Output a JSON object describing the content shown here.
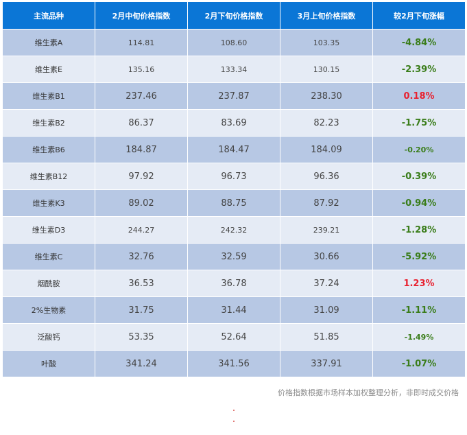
{
  "table": {
    "headers": [
      "主流品种",
      "2月中旬价格指数",
      "2月下旬价格指数",
      "3月上旬价格指数",
      "较2月下旬涨幅"
    ],
    "rows": [
      {
        "name": "维生素A",
        "mid_feb": "114.81",
        "late_feb": "108.60",
        "early_mar": "103.35",
        "change": "-4.84%",
        "direction": "down",
        "size": "sm",
        "change_size": "lg"
      },
      {
        "name": "维生素E",
        "mid_feb": "135.16",
        "late_feb": "133.34",
        "early_mar": "130.15",
        "change": "-2.39%",
        "direction": "down",
        "size": "sm",
        "change_size": "lg"
      },
      {
        "name": "维生素B1",
        "mid_feb": "237.46",
        "late_feb": "237.87",
        "early_mar": "238.30",
        "change": "0.18%",
        "direction": "up",
        "size": "lg",
        "change_size": "lg"
      },
      {
        "name": "维生素B2",
        "mid_feb": "86.37",
        "late_feb": "83.69",
        "early_mar": "82.23",
        "change": "-1.75%",
        "direction": "down",
        "size": "lg",
        "change_size": "lg"
      },
      {
        "name": "维生素B6",
        "mid_feb": "184.87",
        "late_feb": "184.47",
        "early_mar": "184.09",
        "change": "-0.20%",
        "direction": "down",
        "size": "lg",
        "change_size": "sm"
      },
      {
        "name": "维生素B12",
        "mid_feb": "97.92",
        "late_feb": "96.73",
        "early_mar": "96.36",
        "change": "-0.39%",
        "direction": "down",
        "size": "lg",
        "change_size": "lg"
      },
      {
        "name": "维生素K3",
        "mid_feb": "89.02",
        "late_feb": "88.75",
        "early_mar": "87.92",
        "change": "-0.94%",
        "direction": "down",
        "size": "lg",
        "change_size": "lg"
      },
      {
        "name": "维生素D3",
        "mid_feb": "244.27",
        "late_feb": "242.32",
        "early_mar": "239.21",
        "change": "-1.28%",
        "direction": "down",
        "size": "sm",
        "change_size": "lg"
      },
      {
        "name": "维生素C",
        "mid_feb": "32.76",
        "late_feb": "32.59",
        "early_mar": "30.66",
        "change": "-5.92%",
        "direction": "down",
        "size": "lg",
        "change_size": "lg"
      },
      {
        "name": "烟酰胺",
        "mid_feb": "36.53",
        "late_feb": "36.78",
        "early_mar": "37.24",
        "change": "1.23%",
        "direction": "up",
        "size": "lg",
        "change_size": "lg"
      },
      {
        "name": "2%生物素",
        "mid_feb": "31.75",
        "late_feb": "31.44",
        "early_mar": "31.09",
        "change": "-1.11%",
        "direction": "down",
        "size": "lg",
        "change_size": "lg"
      },
      {
        "name": "泛酸钙",
        "mid_feb": "53.35",
        "late_feb": "52.64",
        "early_mar": "51.85",
        "change": "-1.49%",
        "direction": "down",
        "size": "lg",
        "change_size": "sm"
      },
      {
        "name": "叶酸",
        "mid_feb": "341.24",
        "late_feb": "341.56",
        "early_mar": "337.91",
        "change": "-1.07%",
        "direction": "down",
        "size": "lg",
        "change_size": "lg"
      }
    ]
  },
  "footnote": "价格指数根据市场样本加权整理分析，非即时成交价格",
  "colors": {
    "header_bg": "#0b76d6",
    "row_odd_bg": "#b7c8e4",
    "row_even_bg": "#e5ebf5",
    "change_down": "#3a7d1a",
    "change_up": "#e8212f"
  }
}
